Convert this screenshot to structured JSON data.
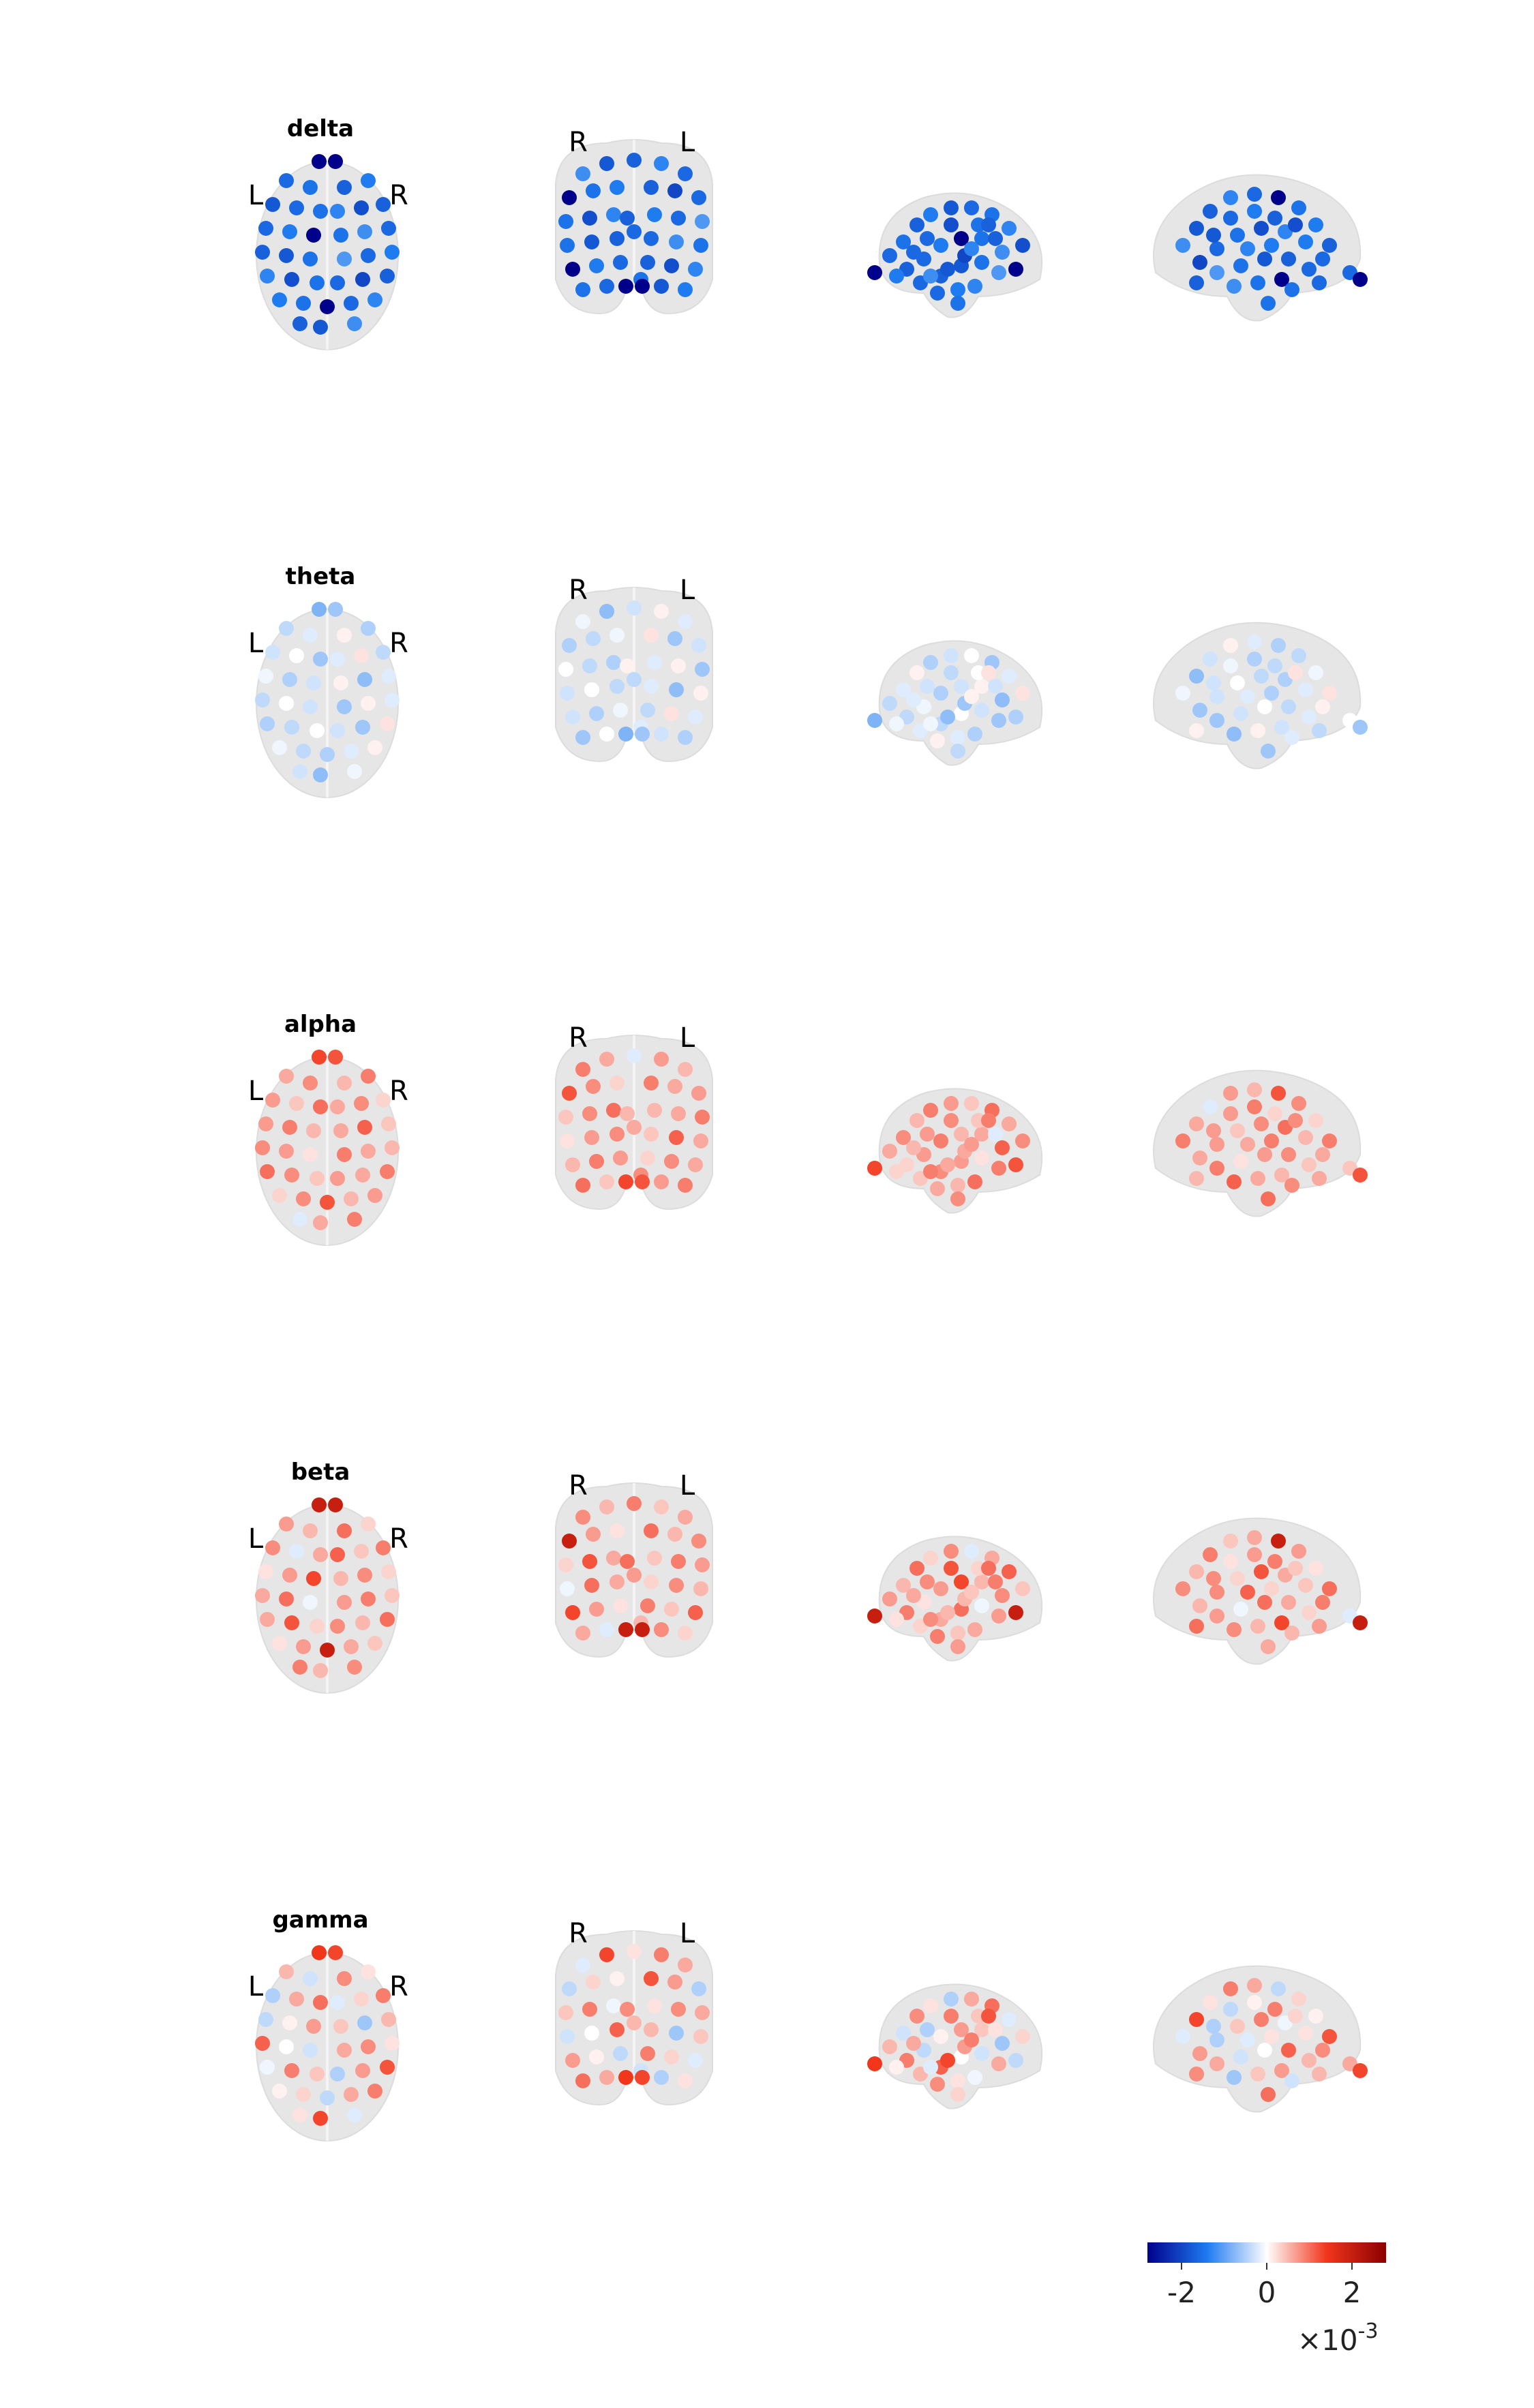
{
  "figure": {
    "rows": [
      {
        "band": "delta",
        "axial_left": "L",
        "axial_right": "R",
        "coronal_left": "R",
        "coronal_right": "L",
        "values": [
          -1.6,
          -1.5,
          -1.7,
          -1.4,
          -1.8,
          -1.6,
          -1.5,
          -1.3,
          -1.9,
          -1.7,
          -1.6,
          -1.4,
          -2.8,
          -1.5,
          -1.2,
          -1.6,
          -1.7,
          -1.8,
          -1.5,
          -1.1,
          -1.6,
          -1.4,
          -1.3,
          -1.9,
          -1.5,
          -1.6,
          -2.0,
          -1.7,
          -1.4,
          -1.5,
          -2.9,
          -1.6,
          -1.3,
          -1.7,
          -1.8,
          -1.2
        ],
        "extremes": [
          -3.0,
          -3.0
        ]
      },
      {
        "band": "theta",
        "axial_left": "L",
        "axial_right": "R",
        "coronal_left": "R",
        "coronal_right": "L",
        "values": [
          -0.4,
          -0.2,
          0.1,
          -0.5,
          -0.3,
          0.0,
          -0.6,
          -0.2,
          0.2,
          -0.4,
          -0.1,
          -0.5,
          -0.3,
          0.1,
          -0.7,
          -0.2,
          -0.4,
          0.0,
          -0.3,
          -0.6,
          0.1,
          -0.2,
          -0.5,
          -0.4,
          0.0,
          -0.3,
          -0.6,
          0.2,
          -0.1,
          -0.4,
          -0.5,
          -0.2,
          0.1,
          -0.3,
          -0.7,
          -0.1
        ],
        "extremes": [
          -0.8,
          -0.6
        ]
      },
      {
        "band": "alpha",
        "axial_left": "L",
        "axial_right": "R",
        "coronal_left": "R",
        "coronal_right": "L",
        "values": [
          0.6,
          0.8,
          0.5,
          0.9,
          0.7,
          0.4,
          1.0,
          0.6,
          0.8,
          0.3,
          0.7,
          0.9,
          0.5,
          0.6,
          1.1,
          0.4,
          0.8,
          0.7,
          0.2,
          0.9,
          0.6,
          0.5,
          1.0,
          0.8,
          0.4,
          0.7,
          0.6,
          0.9,
          0.3,
          0.8,
          1.2,
          0.5,
          0.7,
          -0.2,
          0.6,
          0.9
        ],
        "extremes": [
          1.3,
          1.2
        ]
      },
      {
        "band": "beta",
        "axial_left": "L",
        "axial_right": "R",
        "coronal_left": "R",
        "coronal_right": "L",
        "values": [
          0.7,
          0.5,
          1.0,
          0.3,
          0.8,
          -0.2,
          0.6,
          1.1,
          0.4,
          0.9,
          0.2,
          0.7,
          1.3,
          0.5,
          0.8,
          0.3,
          0.6,
          1.0,
          -0.1,
          0.7,
          0.9,
          0.4,
          0.6,
          1.2,
          0.3,
          0.8,
          0.5,
          1.0,
          0.2,
          0.7,
          2.0,
          0.6,
          0.4,
          0.9,
          0.5,
          0.8
        ],
        "extremes": [
          2.0,
          2.0
        ]
      },
      {
        "band": "gamma",
        "axial_left": "L",
        "axial_right": "R",
        "coronal_left": "R",
        "coronal_right": "L",
        "values": [
          0.5,
          -0.3,
          0.8,
          0.2,
          -0.5,
          0.6,
          1.0,
          -0.2,
          0.3,
          0.9,
          -0.4,
          0.1,
          0.7,
          0.4,
          -0.6,
          0.5,
          1.1,
          0.0,
          -0.3,
          0.6,
          0.8,
          0.2,
          -0.1,
          0.9,
          0.4,
          -0.5,
          0.7,
          1.2,
          0.1,
          0.3,
          -0.4,
          0.6,
          0.9,
          0.2,
          1.3,
          -0.2
        ],
        "extremes": [
          1.4,
          1.3
        ]
      }
    ],
    "colorbar": {
      "ticks": [
        "-2",
        "0",
        "2"
      ],
      "tick_values": [
        -2,
        0,
        2
      ],
      "range": [
        -2.8,
        2.8
      ],
      "exponent_prefix": "×10",
      "exponent_power": "-3",
      "colormap": [
        "#00008b",
        "#1e7bf0",
        "#ffffff",
        "#f2361c",
        "#8b0000"
      ]
    }
  }
}
